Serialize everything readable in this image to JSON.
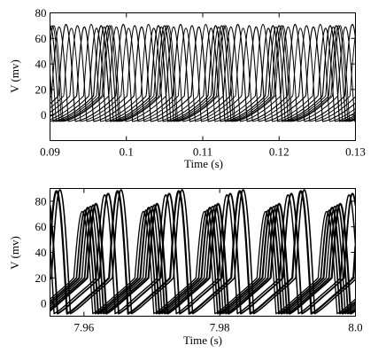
{
  "chart_data": [
    {
      "type": "line",
      "title": "",
      "xlabel": "Time (s)",
      "ylabel": "V (mv)",
      "xlim": [
        0.09,
        0.13
      ],
      "ylim": [
        -20,
        80
      ],
      "x_ticks": [
        0.09,
        0.1,
        0.11,
        0.12,
        0.13
      ],
      "x_tick_labels": [
        "0.09",
        "0.1",
        "0.11",
        "0.12",
        "0.13"
      ],
      "y_ticks": [
        0,
        20,
        40,
        60,
        80
      ],
      "y_tick_labels": [
        "0",
        "20",
        "40",
        "60",
        "80"
      ],
      "grid": false,
      "legend": "none",
      "line_color": "#000000",
      "spike_model": {
        "period_s": 0.0075,
        "rest_mv": -5,
        "peak_mv": 70,
        "threshold_mv": 15,
        "drift_to_mv": -2,
        "spike_width_s": 0.0022
      },
      "series": [
        {
          "first_spike_s": 0.0895,
          "peak_mv": 70
        },
        {
          "first_spike_s": 0.0902,
          "peak_mv": 69
        },
        {
          "first_spike_s": 0.0911,
          "peak_mv": 71
        },
        {
          "first_spike_s": 0.0918,
          "peak_mv": 68
        },
        {
          "first_spike_s": 0.0926,
          "peak_mv": 70
        },
        {
          "first_spike_s": 0.0935,
          "peak_mv": 69
        },
        {
          "first_spike_s": 0.0944,
          "peak_mv": 71
        },
        {
          "first_spike_s": 0.0951,
          "peak_mv": 68
        },
        {
          "first_spike_s": 0.0957,
          "peak_mv": 70
        },
        {
          "first_spike_s": 0.0961,
          "peak_mv": 69
        },
        {
          "first_spike_s": 0.0965,
          "peak_mv": 70
        },
        {
          "first_spike_s": 0.0968,
          "peak_mv": 70
        }
      ]
    },
    {
      "type": "line",
      "title": "",
      "xlabel": "Time (s)",
      "ylabel": "V (mv)",
      "xlim": [
        7.955,
        8.0
      ],
      "ylim": [
        -10,
        90
      ],
      "x_ticks": [
        7.96,
        7.98,
        8.0
      ],
      "x_tick_labels": [
        "7.96",
        "7.98",
        "8.0"
      ],
      "y_ticks": [
        0,
        20,
        40,
        60,
        80
      ],
      "y_tick_labels": [
        "0",
        "20",
        "40",
        "60",
        "80"
      ],
      "grid": false,
      "legend": "none",
      "line_color": "#000000",
      "spike_model": {
        "period_s": 0.009,
        "rest_mv": -8,
        "threshold_mv": 20,
        "drift_to_mv": 5,
        "spike_width_s": 0.0028
      },
      "series": [
        {
          "first_spike_s": 7.9585,
          "peak_mv": 72
        },
        {
          "first_spike_s": 7.9589,
          "peak_mv": 73
        },
        {
          "first_spike_s": 7.9593,
          "peak_mv": 75
        },
        {
          "first_spike_s": 7.9597,
          "peak_mv": 76
        },
        {
          "first_spike_s": 7.9601,
          "peak_mv": 77
        },
        {
          "first_spike_s": 7.9605,
          "peak_mv": 78
        },
        {
          "first_spike_s": 7.9618,
          "peak_mv": 85
        },
        {
          "first_spike_s": 7.9623,
          "peak_mv": 86
        },
        {
          "first_spike_s": 7.9637,
          "peak_mv": 88
        },
        {
          "first_spike_s": 7.9642,
          "peak_mv": 89
        }
      ]
    }
  ]
}
